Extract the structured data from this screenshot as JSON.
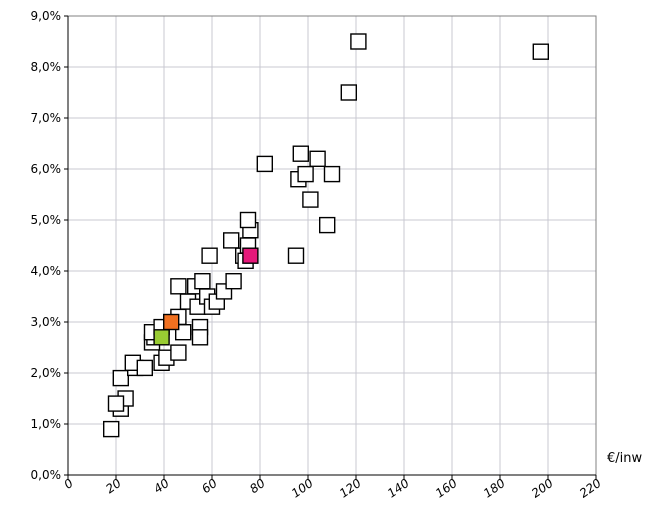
{
  "chart_data": {
    "type": "scatter",
    "title": "",
    "xlabel": "€/inw",
    "ylabel": "",
    "xlim": [
      0,
      220
    ],
    "ylim": [
      0,
      9
    ],
    "x_ticks": [
      "0",
      "20",
      "40",
      "60",
      "80",
      "100",
      "120",
      "140",
      "160",
      "180",
      "200",
      "220"
    ],
    "y_ticks": [
      "0,0%",
      "1,0%",
      "2,0%",
      "3,0%",
      "4,0%",
      "5,0%",
      "6,0%",
      "7,0%",
      "8,0%",
      "9,0%"
    ],
    "grid": true,
    "marker": "square",
    "colors": {
      "default": "#ffffff",
      "highlight_orange": "#f07020",
      "highlight_green": "#99cc33",
      "highlight_pink": "#e6197a"
    },
    "series": [
      {
        "points": [
          {
            "x": 18,
            "y": 0.9
          },
          {
            "x": 22,
            "y": 1.3
          },
          {
            "x": 24,
            "y": 1.5
          },
          {
            "x": 20,
            "y": 1.4
          },
          {
            "x": 22,
            "y": 1.9
          },
          {
            "x": 28,
            "y": 2.1
          },
          {
            "x": 27,
            "y": 2.2
          },
          {
            "x": 32,
            "y": 2.1
          },
          {
            "x": 35,
            "y": 2.6
          },
          {
            "x": 36,
            "y": 2.7
          },
          {
            "x": 35,
            "y": 2.8
          },
          {
            "x": 39,
            "y": 2.2
          },
          {
            "x": 41,
            "y": 2.3
          },
          {
            "x": 39,
            "y": 2.9
          },
          {
            "x": 46,
            "y": 2.4
          },
          {
            "x": 48,
            "y": 2.8
          },
          {
            "x": 46,
            "y": 3.1
          },
          {
            "x": 46,
            "y": 3.7
          },
          {
            "x": 50,
            "y": 3.4
          },
          {
            "x": 53,
            "y": 3.7
          },
          {
            "x": 54,
            "y": 3.3
          },
          {
            "x": 55,
            "y": 2.9
          },
          {
            "x": 55,
            "y": 2.7
          },
          {
            "x": 56,
            "y": 3.8
          },
          {
            "x": 58,
            "y": 3.5
          },
          {
            "x": 60,
            "y": 3.3
          },
          {
            "x": 62,
            "y": 3.4
          },
          {
            "x": 65,
            "y": 3.6
          },
          {
            "x": 69,
            "y": 3.8
          },
          {
            "x": 68,
            "y": 4.6
          },
          {
            "x": 59,
            "y": 4.3
          },
          {
            "x": 73,
            "y": 4.3
          },
          {
            "x": 74,
            "y": 4.2
          },
          {
            "x": 75,
            "y": 4.5
          },
          {
            "x": 76,
            "y": 4.8
          },
          {
            "x": 75,
            "y": 5.0
          },
          {
            "x": 82,
            "y": 6.1
          },
          {
            "x": 95,
            "y": 4.3
          },
          {
            "x": 96,
            "y": 5.8
          },
          {
            "x": 97,
            "y": 6.3
          },
          {
            "x": 99,
            "y": 5.9
          },
          {
            "x": 101,
            "y": 5.4
          },
          {
            "x": 104,
            "y": 6.2
          },
          {
            "x": 108,
            "y": 4.9
          },
          {
            "x": 110,
            "y": 5.9
          },
          {
            "x": 117,
            "y": 7.5
          },
          {
            "x": 121,
            "y": 8.5
          },
          {
            "x": 197,
            "y": 8.3
          }
        ]
      },
      {
        "color": "#f07020",
        "points": [
          {
            "x": 43,
            "y": 3.0
          }
        ]
      },
      {
        "color": "#99cc33",
        "points": [
          {
            "x": 39,
            "y": 2.7
          }
        ]
      },
      {
        "color": "#e6197a",
        "points": [
          {
            "x": 76,
            "y": 4.3
          }
        ]
      }
    ]
  }
}
